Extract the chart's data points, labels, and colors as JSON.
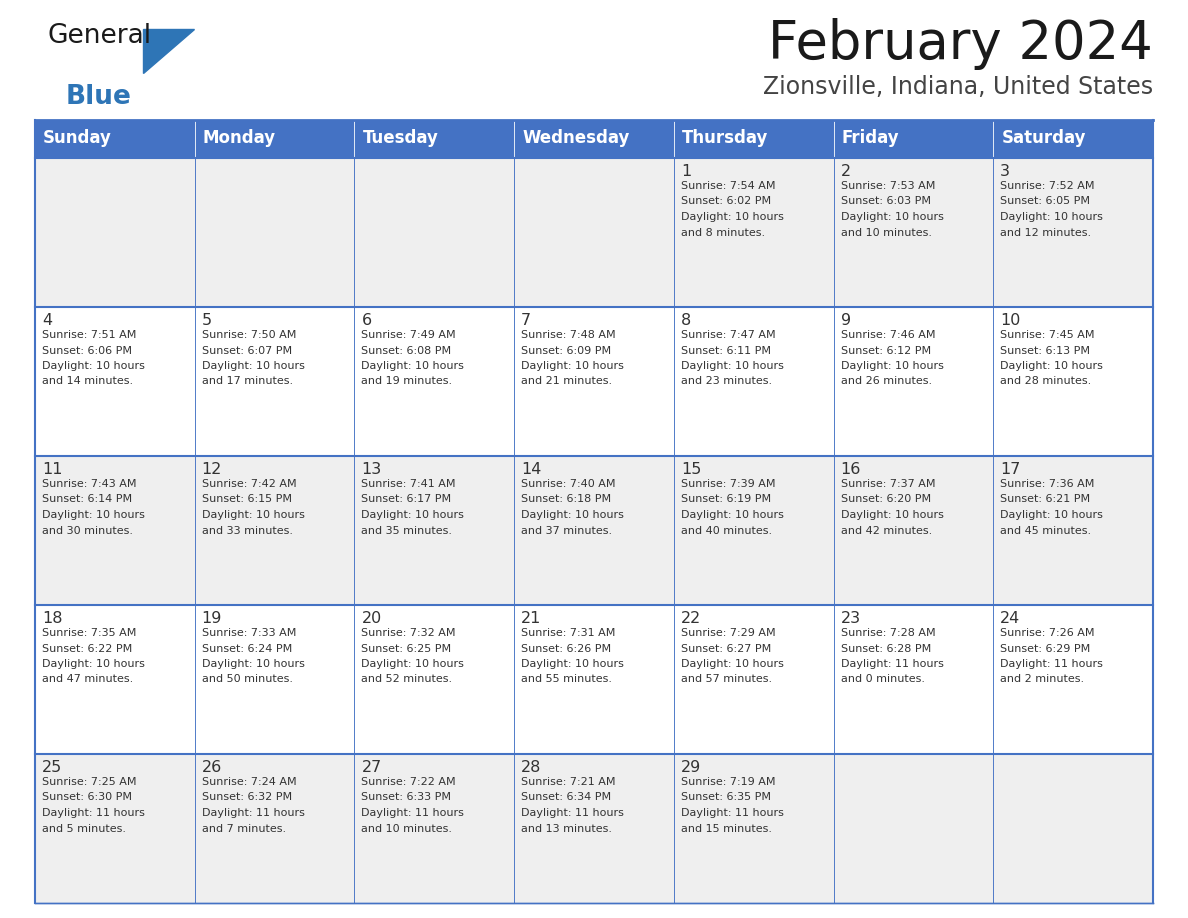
{
  "title": "February 2024",
  "subtitle": "Zionsville, Indiana, United States",
  "header_color": "#4472C4",
  "header_text_color": "#FFFFFF",
  "days_of_week": [
    "Sunday",
    "Monday",
    "Tuesday",
    "Wednesday",
    "Thursday",
    "Friday",
    "Saturday"
  ],
  "grid_line_color": "#4472C4",
  "row_colors": [
    "#EFEFEF",
    "#FFFFFF",
    "#EFEFEF",
    "#FFFFFF",
    "#EFEFEF"
  ],
  "day_num_color": "#333333",
  "detail_color": "#333333",
  "title_color": "#1a1a1a",
  "subtitle_color": "#444444",
  "logo_general_color": "#1a1a1a",
  "logo_blue_color": "#2E75B6",
  "logo_triangle_color": "#2E75B6",
  "weeks": [
    [
      {
        "day": null,
        "info": ""
      },
      {
        "day": null,
        "info": ""
      },
      {
        "day": null,
        "info": ""
      },
      {
        "day": null,
        "info": ""
      },
      {
        "day": 1,
        "info": "Sunrise: 7:54 AM\nSunset: 6:02 PM\nDaylight: 10 hours\nand 8 minutes."
      },
      {
        "day": 2,
        "info": "Sunrise: 7:53 AM\nSunset: 6:03 PM\nDaylight: 10 hours\nand 10 minutes."
      },
      {
        "day": 3,
        "info": "Sunrise: 7:52 AM\nSunset: 6:05 PM\nDaylight: 10 hours\nand 12 minutes."
      }
    ],
    [
      {
        "day": 4,
        "info": "Sunrise: 7:51 AM\nSunset: 6:06 PM\nDaylight: 10 hours\nand 14 minutes."
      },
      {
        "day": 5,
        "info": "Sunrise: 7:50 AM\nSunset: 6:07 PM\nDaylight: 10 hours\nand 17 minutes."
      },
      {
        "day": 6,
        "info": "Sunrise: 7:49 AM\nSunset: 6:08 PM\nDaylight: 10 hours\nand 19 minutes."
      },
      {
        "day": 7,
        "info": "Sunrise: 7:48 AM\nSunset: 6:09 PM\nDaylight: 10 hours\nand 21 minutes."
      },
      {
        "day": 8,
        "info": "Sunrise: 7:47 AM\nSunset: 6:11 PM\nDaylight: 10 hours\nand 23 minutes."
      },
      {
        "day": 9,
        "info": "Sunrise: 7:46 AM\nSunset: 6:12 PM\nDaylight: 10 hours\nand 26 minutes."
      },
      {
        "day": 10,
        "info": "Sunrise: 7:45 AM\nSunset: 6:13 PM\nDaylight: 10 hours\nand 28 minutes."
      }
    ],
    [
      {
        "day": 11,
        "info": "Sunrise: 7:43 AM\nSunset: 6:14 PM\nDaylight: 10 hours\nand 30 minutes."
      },
      {
        "day": 12,
        "info": "Sunrise: 7:42 AM\nSunset: 6:15 PM\nDaylight: 10 hours\nand 33 minutes."
      },
      {
        "day": 13,
        "info": "Sunrise: 7:41 AM\nSunset: 6:17 PM\nDaylight: 10 hours\nand 35 minutes."
      },
      {
        "day": 14,
        "info": "Sunrise: 7:40 AM\nSunset: 6:18 PM\nDaylight: 10 hours\nand 37 minutes."
      },
      {
        "day": 15,
        "info": "Sunrise: 7:39 AM\nSunset: 6:19 PM\nDaylight: 10 hours\nand 40 minutes."
      },
      {
        "day": 16,
        "info": "Sunrise: 7:37 AM\nSunset: 6:20 PM\nDaylight: 10 hours\nand 42 minutes."
      },
      {
        "day": 17,
        "info": "Sunrise: 7:36 AM\nSunset: 6:21 PM\nDaylight: 10 hours\nand 45 minutes."
      }
    ],
    [
      {
        "day": 18,
        "info": "Sunrise: 7:35 AM\nSunset: 6:22 PM\nDaylight: 10 hours\nand 47 minutes."
      },
      {
        "day": 19,
        "info": "Sunrise: 7:33 AM\nSunset: 6:24 PM\nDaylight: 10 hours\nand 50 minutes."
      },
      {
        "day": 20,
        "info": "Sunrise: 7:32 AM\nSunset: 6:25 PM\nDaylight: 10 hours\nand 52 minutes."
      },
      {
        "day": 21,
        "info": "Sunrise: 7:31 AM\nSunset: 6:26 PM\nDaylight: 10 hours\nand 55 minutes."
      },
      {
        "day": 22,
        "info": "Sunrise: 7:29 AM\nSunset: 6:27 PM\nDaylight: 10 hours\nand 57 minutes."
      },
      {
        "day": 23,
        "info": "Sunrise: 7:28 AM\nSunset: 6:28 PM\nDaylight: 11 hours\nand 0 minutes."
      },
      {
        "day": 24,
        "info": "Sunrise: 7:26 AM\nSunset: 6:29 PM\nDaylight: 11 hours\nand 2 minutes."
      }
    ],
    [
      {
        "day": 25,
        "info": "Sunrise: 7:25 AM\nSunset: 6:30 PM\nDaylight: 11 hours\nand 5 minutes."
      },
      {
        "day": 26,
        "info": "Sunrise: 7:24 AM\nSunset: 6:32 PM\nDaylight: 11 hours\nand 7 minutes."
      },
      {
        "day": 27,
        "info": "Sunrise: 7:22 AM\nSunset: 6:33 PM\nDaylight: 11 hours\nand 10 minutes."
      },
      {
        "day": 28,
        "info": "Sunrise: 7:21 AM\nSunset: 6:34 PM\nDaylight: 11 hours\nand 13 minutes."
      },
      {
        "day": 29,
        "info": "Sunrise: 7:19 AM\nSunset: 6:35 PM\nDaylight: 11 hours\nand 15 minutes."
      },
      {
        "day": null,
        "info": ""
      },
      {
        "day": null,
        "info": ""
      }
    ]
  ]
}
